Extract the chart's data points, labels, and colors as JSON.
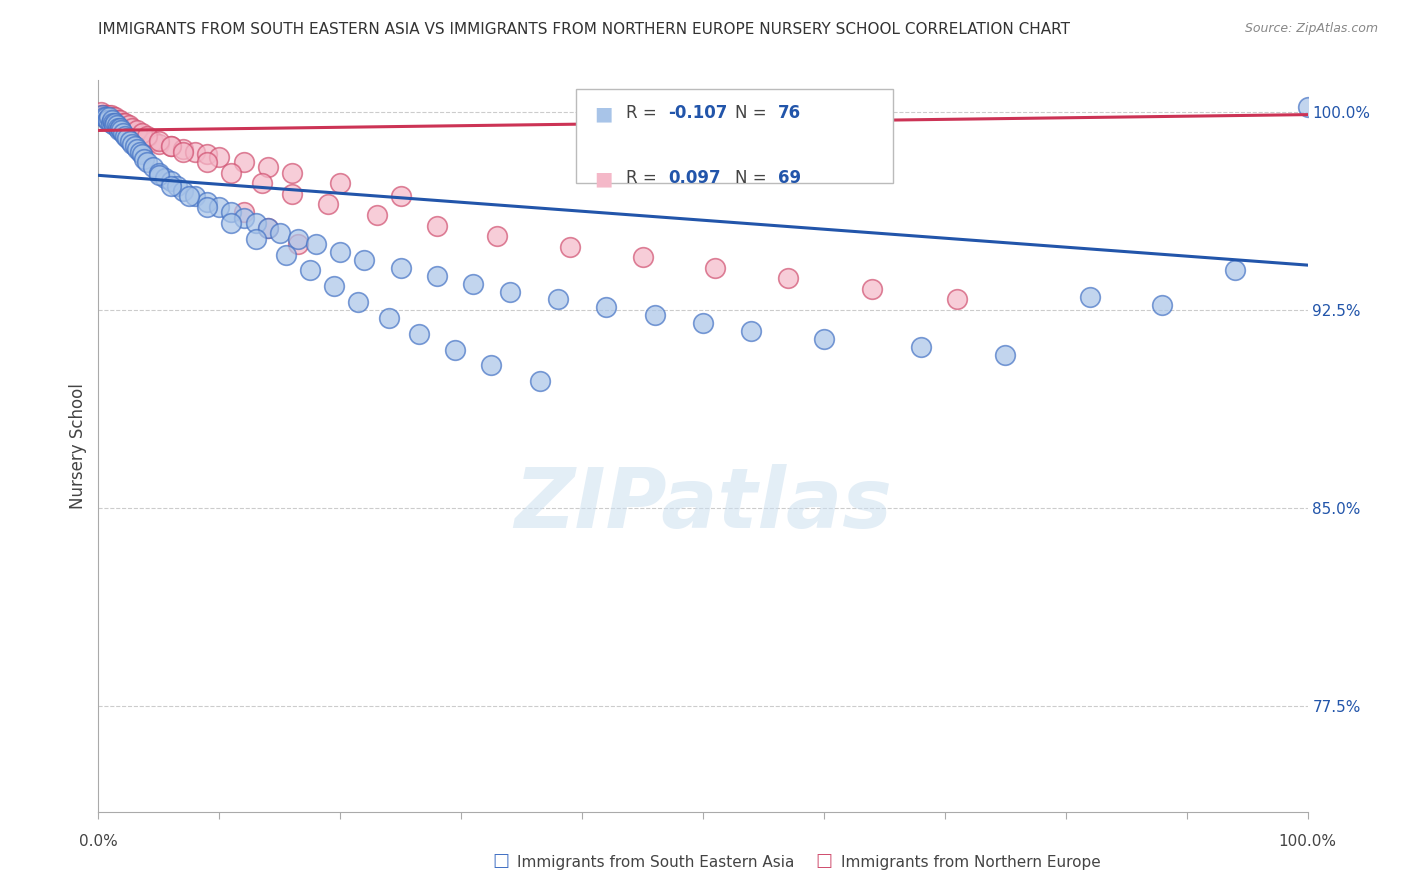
{
  "title": "IMMIGRANTS FROM SOUTH EASTERN ASIA VS IMMIGRANTS FROM NORTHERN EUROPE NURSERY SCHOOL CORRELATION CHART",
  "source": "Source: ZipAtlas.com",
  "ylabel": "Nursery School",
  "xlim": [
    0.0,
    1.0
  ],
  "ylim": [
    0.735,
    1.012
  ],
  "yticks": [
    0.775,
    0.85,
    0.925,
    1.0
  ],
  "ytick_labels": [
    "77.5%",
    "85.0%",
    "92.5%",
    "100.0%"
  ],
  "blue_color": "#a8c4e8",
  "blue_edge_color": "#4472c4",
  "pink_color": "#f4b8c8",
  "pink_edge_color": "#d05070",
  "blue_line_color": "#2255aa",
  "pink_line_color": "#cc3355",
  "watermark": "ZIPatlas",
  "blue_trend_x": [
    0.0,
    1.0
  ],
  "blue_trend_y": [
    0.976,
    0.942
  ],
  "pink_trend_x": [
    0.0,
    1.0
  ],
  "pink_trend_y": [
    0.993,
    0.999
  ],
  "blue_scatter_x": [
    0.003,
    0.005,
    0.006,
    0.007,
    0.008,
    0.009,
    0.01,
    0.011,
    0.012,
    0.013,
    0.014,
    0.015,
    0.016,
    0.017,
    0.018,
    0.019,
    0.02,
    0.022,
    0.024,
    0.026,
    0.028,
    0.03,
    0.032,
    0.034,
    0.036,
    0.038,
    0.04,
    0.045,
    0.05,
    0.055,
    0.06,
    0.065,
    0.07,
    0.08,
    0.09,
    0.1,
    0.11,
    0.12,
    0.13,
    0.14,
    0.15,
    0.165,
    0.18,
    0.2,
    0.22,
    0.25,
    0.28,
    0.31,
    0.34,
    0.38,
    0.42,
    0.46,
    0.5,
    0.54,
    0.6,
    0.68,
    0.75,
    0.82,
    0.88,
    0.94,
    0.05,
    0.06,
    0.075,
    0.09,
    0.11,
    0.13,
    0.155,
    0.175,
    0.195,
    0.215,
    0.24,
    0.265,
    0.295,
    0.325,
    0.365,
    1.0
  ],
  "blue_scatter_y": [
    0.999,
    0.998,
    0.998,
    0.997,
    0.997,
    0.998,
    0.996,
    0.997,
    0.996,
    0.995,
    0.996,
    0.995,
    0.994,
    0.993,
    0.994,
    0.993,
    0.992,
    0.991,
    0.99,
    0.989,
    0.988,
    0.987,
    0.986,
    0.985,
    0.984,
    0.982,
    0.981,
    0.979,
    0.977,
    0.975,
    0.974,
    0.972,
    0.97,
    0.968,
    0.966,
    0.964,
    0.962,
    0.96,
    0.958,
    0.956,
    0.954,
    0.952,
    0.95,
    0.947,
    0.944,
    0.941,
    0.938,
    0.935,
    0.932,
    0.929,
    0.926,
    0.923,
    0.92,
    0.917,
    0.914,
    0.911,
    0.908,
    0.93,
    0.927,
    0.94,
    0.976,
    0.972,
    0.968,
    0.964,
    0.958,
    0.952,
    0.946,
    0.94,
    0.934,
    0.928,
    0.922,
    0.916,
    0.91,
    0.904,
    0.898,
    1.002
  ],
  "pink_scatter_x": [
    0.002,
    0.003,
    0.004,
    0.005,
    0.006,
    0.007,
    0.008,
    0.009,
    0.01,
    0.011,
    0.012,
    0.013,
    0.014,
    0.015,
    0.016,
    0.018,
    0.02,
    0.022,
    0.025,
    0.028,
    0.032,
    0.036,
    0.04,
    0.045,
    0.05,
    0.06,
    0.07,
    0.08,
    0.09,
    0.1,
    0.12,
    0.14,
    0.16,
    0.2,
    0.25,
    0.12,
    0.14,
    0.165,
    0.6,
    0.62,
    0.01,
    0.012,
    0.014,
    0.016,
    0.018,
    0.02,
    0.022,
    0.025,
    0.028,
    0.032,
    0.036,
    0.04,
    0.05,
    0.06,
    0.07,
    0.09,
    0.11,
    0.135,
    0.16,
    0.19,
    0.23,
    0.28,
    0.33,
    0.39,
    0.45,
    0.51,
    0.57,
    0.64,
    0.71
  ],
  "pink_scatter_y": [
    1.0,
    0.999,
    0.999,
    0.999,
    0.999,
    0.998,
    0.999,
    0.998,
    0.998,
    0.998,
    0.997,
    0.997,
    0.997,
    0.997,
    0.996,
    0.996,
    0.995,
    0.995,
    0.994,
    0.993,
    0.992,
    0.991,
    0.99,
    0.989,
    0.988,
    0.987,
    0.986,
    0.985,
    0.984,
    0.983,
    0.981,
    0.979,
    0.977,
    0.973,
    0.968,
    0.962,
    0.956,
    0.95,
    0.993,
    0.99,
    0.999,
    0.998,
    0.998,
    0.997,
    0.997,
    0.996,
    0.996,
    0.995,
    0.994,
    0.993,
    0.992,
    0.991,
    0.989,
    0.987,
    0.985,
    0.981,
    0.977,
    0.973,
    0.969,
    0.965,
    0.961,
    0.957,
    0.953,
    0.949,
    0.945,
    0.941,
    0.937,
    0.933,
    0.929
  ],
  "grid_color": "#cccccc",
  "spine_color": "#aaaaaa",
  "tick_color": "#2255aa",
  "title_fontsize": 11,
  "axis_fontsize": 11,
  "ylabel_fontsize": 12
}
